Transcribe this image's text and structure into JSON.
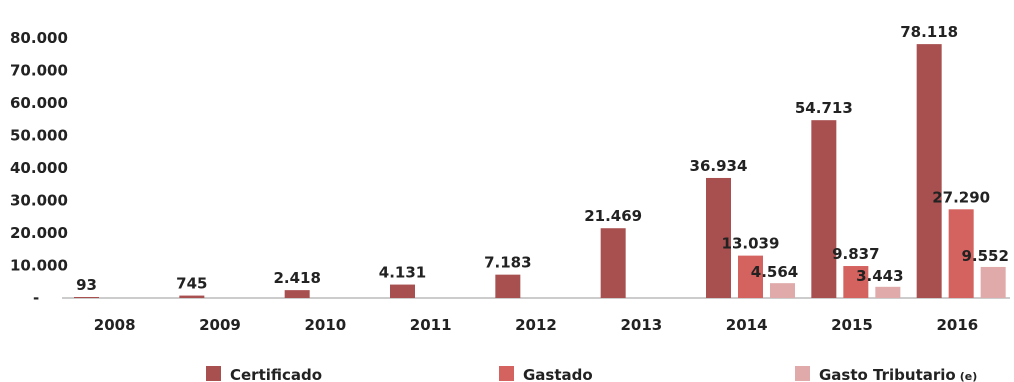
{
  "chart_data": {
    "type": "bar",
    "categories": [
      "2008",
      "2009",
      "2010",
      "2011",
      "2012",
      "2013",
      "2014",
      "2015",
      "2016"
    ],
    "series": [
      {
        "name": "Certificado",
        "color": "#a84f4f",
        "values": [
          93,
          745,
          2418,
          4131,
          7183,
          21469,
          36934,
          54713,
          78118
        ]
      },
      {
        "name": "Gastado",
        "color": "#d4625f",
        "values": [
          null,
          null,
          null,
          null,
          null,
          null,
          13039,
          9837,
          27290
        ]
      },
      {
        "name": "Gasto Tributario",
        "name_note": "(e)",
        "color": "#dfaaa9",
        "values": [
          null,
          null,
          null,
          null,
          null,
          null,
          4564,
          3443,
          9552
        ]
      }
    ],
    "data_labels": {
      "Certificado": [
        "93",
        "745",
        "2.418",
        "4.131",
        "7.183",
        "21.469",
        "36.934",
        "54.713",
        "78.118"
      ],
      "Gastado": [
        null,
        null,
        null,
        null,
        null,
        null,
        "13.039",
        "9.837",
        "27.290"
      ],
      "Gasto Tributario": [
        null,
        null,
        null,
        null,
        null,
        null,
        "4.564",
        "3.443",
        "9.552"
      ]
    },
    "y_ticks": [
      0,
      10000,
      20000,
      30000,
      40000,
      50000,
      60000,
      70000,
      80000
    ],
    "y_tick_labels": [
      "-",
      "10.000",
      "20.000",
      "30.000",
      "40.000",
      "50.000",
      "60.000",
      "70.000",
      "80.000"
    ],
    "ylim": [
      0,
      80000
    ],
    "title": "",
    "xlabel": "",
    "ylabel": "",
    "grid": false,
    "legend_position": "bottom"
  }
}
